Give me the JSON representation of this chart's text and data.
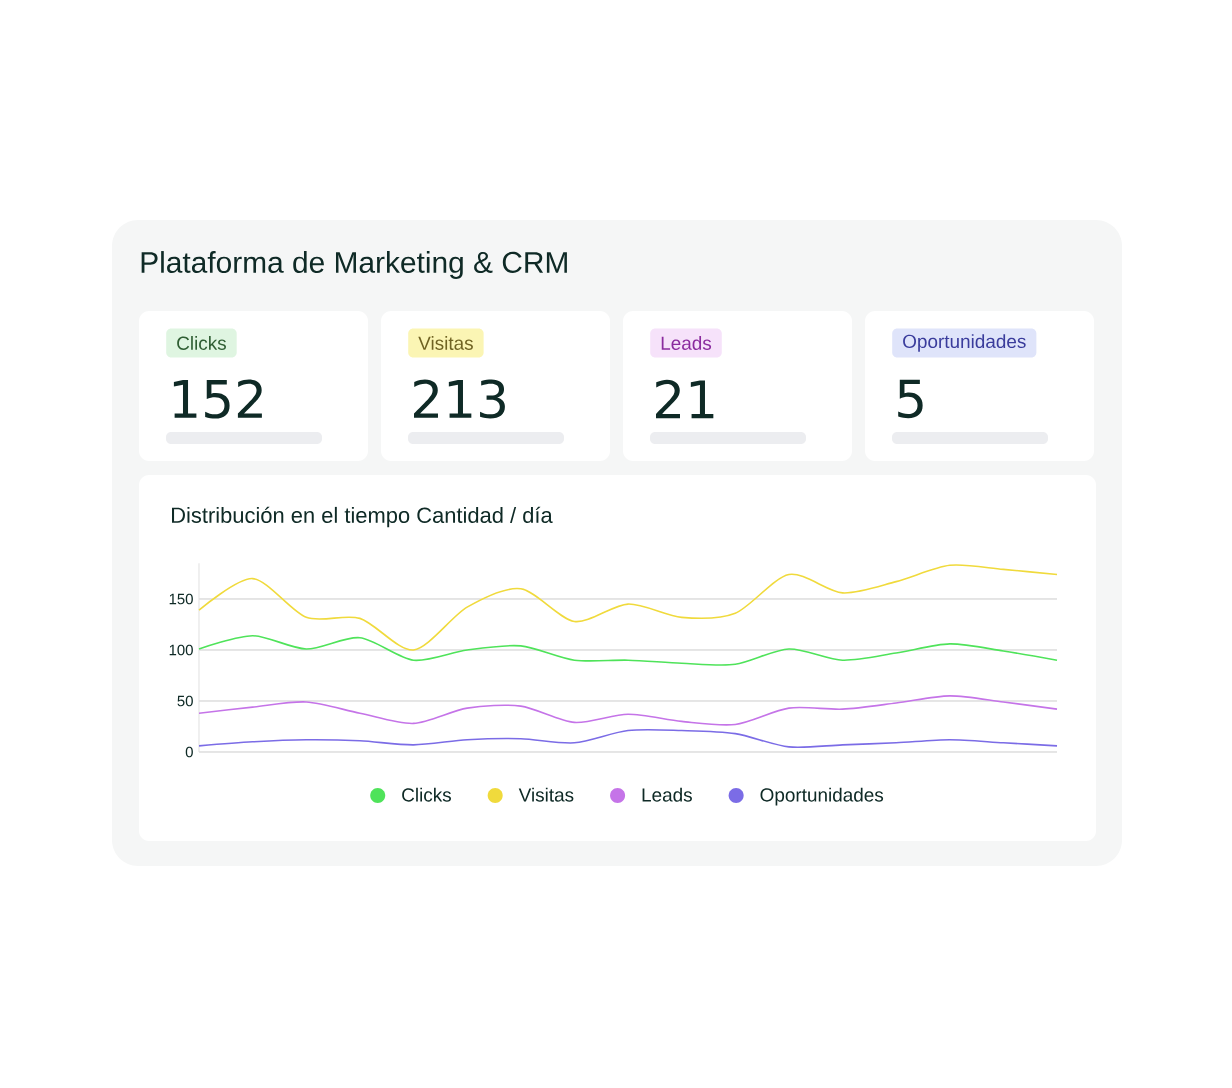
{
  "chart_data": [
    {
      "type": "other",
      "title": "Plataforma de Marketing & CRM",
      "categories": [
        "Clicks",
        "Visitas",
        "Leads",
        "Oportunidades"
      ],
      "values": [
        152,
        213,
        21,
        5
      ],
      "data_labels": true
    },
    {
      "type": "line",
      "title": "Distribución en el tiempo Cantidad / día",
      "categories": [
        null,
        null,
        null,
        null,
        null,
        null,
        null,
        null,
        null,
        null,
        null,
        null,
        null,
        null,
        null,
        null,
        null
      ],
      "series": [
        {
          "name": "Clicks",
          "color": "#4fe35a",
          "values": [
            101,
            114,
            101,
            112,
            90,
            100,
            104,
            90,
            90,
            87,
            86,
            101,
            90,
            97,
            106,
            99,
            90
          ]
        },
        {
          "name": "Visitas",
          "color": "#f0da3c",
          "values": [
            139,
            170,
            132,
            131,
            100,
            142,
            160,
            128,
            145,
            132,
            136,
            174,
            156,
            167,
            183,
            179,
            174
          ]
        },
        {
          "name": "Leads",
          "color": "#c574e8",
          "values": [
            38,
            44,
            49,
            38,
            28,
            43,
            45,
            29,
            37,
            30,
            27,
            43,
            42,
            48,
            55,
            49,
            42
          ]
        },
        {
          "name": "Oportunidades",
          "color": "#7b6ce6",
          "values": [
            6,
            10,
            12,
            11,
            7,
            12,
            13,
            9,
            21,
            21,
            18,
            5,
            7,
            9,
            12,
            9,
            6
          ]
        }
      ],
      "ylim": [
        0,
        185
      ],
      "yticks": [
        0,
        50,
        100,
        150
      ],
      "grid": "y",
      "legend": "bottom",
      "marker": "none",
      "line_style": "solid"
    }
  ]
}
